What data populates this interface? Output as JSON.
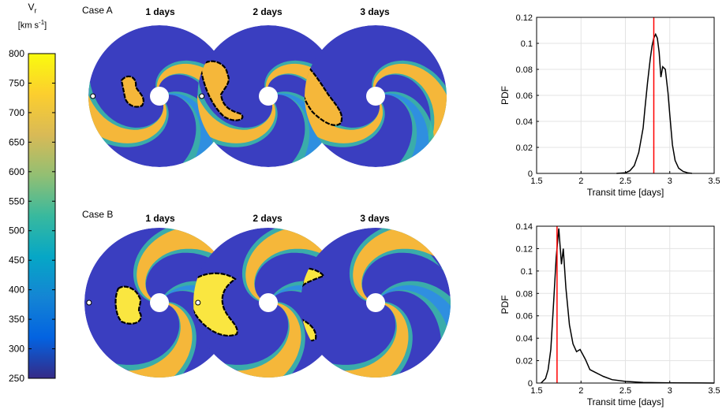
{
  "colorbar": {
    "label_main": "V",
    "label_sub": "r",
    "units_prefix": "[km s",
    "units_exp": "-1",
    "units_suffix": "]",
    "ticks": [
      800,
      750,
      700,
      650,
      600,
      550,
      500,
      450,
      400,
      350,
      300,
      250
    ],
    "range": [
      250,
      800
    ],
    "colormap": [
      "#352a87",
      "#0363e1",
      "#1485d4",
      "#06a7c6",
      "#38b99e",
      "#92bf73",
      "#d9ba56",
      "#fcce2e",
      "#f9fb0e"
    ]
  },
  "cases": [
    {
      "label": "Case A",
      "days": [
        "1 days",
        "2 days",
        "3 days"
      ]
    },
    {
      "label": "Case B",
      "days": [
        "1 days",
        "2 days",
        "3 days"
      ]
    }
  ],
  "chart_data": [
    {
      "type": "line",
      "xlabel": "Transit time [days]",
      "ylabel": "PDF",
      "xlim": [
        1.5,
        3.5
      ],
      "ylim": [
        0,
        0.12
      ],
      "xticks": [
        "1.5",
        "2",
        "2.5",
        "3",
        "3.5"
      ],
      "yticks": [
        "0",
        "0.02",
        "0.04",
        "0.06",
        "0.08",
        "0.1",
        "0.12"
      ],
      "grid": true,
      "marker_x": 2.82,
      "marker_color": "#ff0000",
      "series": [
        {
          "x": [
            2.4,
            2.5,
            2.55,
            2.6,
            2.65,
            2.7,
            2.72,
            2.75,
            2.78,
            2.8,
            2.82,
            2.84,
            2.86,
            2.88,
            2.9,
            2.92,
            2.95,
            2.98,
            3.0,
            3.03,
            3.06,
            3.1,
            3.15,
            3.2,
            3.25
          ],
          "y": [
            0.0,
            0.0005,
            0.002,
            0.006,
            0.016,
            0.035,
            0.05,
            0.07,
            0.088,
            0.098,
            0.104,
            0.107,
            0.104,
            0.093,
            0.074,
            0.082,
            0.08,
            0.062,
            0.045,
            0.022,
            0.01,
            0.004,
            0.0015,
            0.0005,
            0.0
          ]
        }
      ]
    },
    {
      "type": "line",
      "xlabel": "Transit time [days]",
      "ylabel": "PDF",
      "xlim": [
        1.5,
        3.5
      ],
      "ylim": [
        0,
        0.14
      ],
      "xticks": [
        "1.5",
        "2",
        "2.5",
        "3",
        "3.5"
      ],
      "yticks": [
        "0",
        "0.02",
        "0.04",
        "0.06",
        "0.08",
        "0.1",
        "0.12",
        "0.14"
      ],
      "grid": true,
      "marker_x": 1.73,
      "marker_color": "#ff0000",
      "series": [
        {
          "x": [
            1.55,
            1.6,
            1.63,
            1.66,
            1.69,
            1.72,
            1.75,
            1.78,
            1.8,
            1.83,
            1.87,
            1.91,
            1.95,
            1.99,
            2.05,
            2.1,
            2.15,
            2.25,
            2.35,
            2.5,
            2.7,
            3.0,
            3.5
          ],
          "y": [
            0.0,
            0.004,
            0.012,
            0.03,
            0.07,
            0.112,
            0.138,
            0.106,
            0.12,
            0.085,
            0.052,
            0.035,
            0.028,
            0.03,
            0.021,
            0.012,
            0.01,
            0.006,
            0.003,
            0.0015,
            0.0005,
            0.0002,
            0.0
          ]
        }
      ]
    }
  ]
}
